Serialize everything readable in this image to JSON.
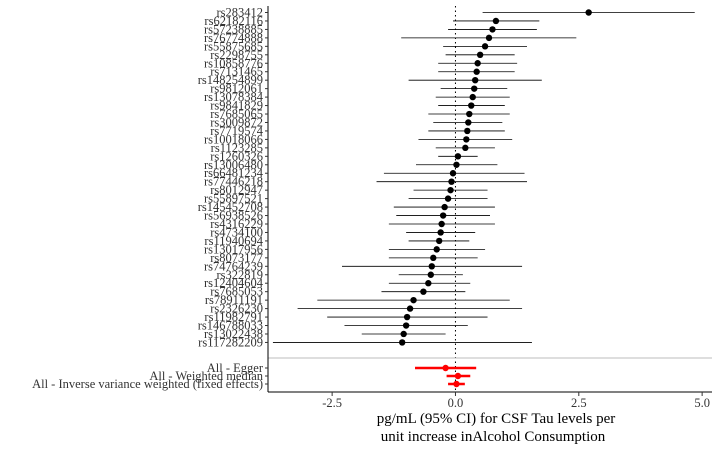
{
  "chart_data": {
    "type": "forest",
    "xlabel": [
      "pg/mL (95% CI) for CSF Tau levels per",
      "unit increase inAlcohol Consumption"
    ],
    "xticks": [
      -2.5,
      0.0,
      2.5,
      5.0
    ],
    "xtick_labels": [
      "-2.5",
      "0.0",
      "2.5",
      "5.0"
    ],
    "xlim": [
      -3.8,
      5.2
    ],
    "null_line": 0,
    "colors": {
      "snp": "#000000",
      "summary": "#ff0000",
      "separator": "#bebebe"
    },
    "snps": [
      {
        "label": "rs283412",
        "est": 2.7,
        "lo": 0.55,
        "hi": 4.85
      },
      {
        "label": "rs62182116",
        "est": 0.82,
        "lo": -0.05,
        "hi": 1.7
      },
      {
        "label": "rs57238885",
        "est": 0.75,
        "lo": -0.15,
        "hi": 1.65
      },
      {
        "label": "rs76774888",
        "est": 0.68,
        "lo": -1.1,
        "hi": 2.45
      },
      {
        "label": "rs55875685",
        "est": 0.6,
        "lo": -0.25,
        "hi": 1.45
      },
      {
        "label": "rs2298755",
        "est": 0.5,
        "lo": -0.2,
        "hi": 1.2
      },
      {
        "label": "rs10858776",
        "est": 0.45,
        "lo": -0.35,
        "hi": 1.25
      },
      {
        "label": "rs7131465",
        "est": 0.43,
        "lo": -0.35,
        "hi": 1.2
      },
      {
        "label": "rs148254899",
        "est": 0.4,
        "lo": -0.95,
        "hi": 1.75
      },
      {
        "label": "rs9812061",
        "est": 0.38,
        "lo": -0.3,
        "hi": 1.05
      },
      {
        "label": "rs13078384",
        "est": 0.35,
        "lo": -0.4,
        "hi": 1.1
      },
      {
        "label": "rs9841829",
        "est": 0.32,
        "lo": -0.35,
        "hi": 1.0
      },
      {
        "label": "rs7685065",
        "est": 0.28,
        "lo": -0.55,
        "hi": 1.1
      },
      {
        "label": "rs3009872",
        "est": 0.26,
        "lo": -0.45,
        "hi": 0.95
      },
      {
        "label": "rs7719574",
        "est": 0.24,
        "lo": -0.55,
        "hi": 1.0
      },
      {
        "label": "rs10018066",
        "est": 0.22,
        "lo": -0.75,
        "hi": 1.15
      },
      {
        "label": "rs1123285",
        "est": 0.2,
        "lo": -0.4,
        "hi": 0.8
      },
      {
        "label": "rs1260326",
        "est": 0.05,
        "lo": -0.35,
        "hi": 0.45
      },
      {
        "label": "rs13006480",
        "est": 0.02,
        "lo": -0.8,
        "hi": 0.85
      },
      {
        "label": "rs66481234",
        "est": -0.05,
        "lo": -1.45,
        "hi": 1.4
      },
      {
        "label": "rs77446218",
        "est": -0.08,
        "lo": -1.6,
        "hi": 1.45
      },
      {
        "label": "rs8012947",
        "est": -0.1,
        "lo": -0.85,
        "hi": 0.65
      },
      {
        "label": "rs55897521",
        "est": -0.15,
        "lo": -0.95,
        "hi": 0.65
      },
      {
        "label": "rs145452708",
        "est": -0.22,
        "lo": -1.25,
        "hi": 0.8
      },
      {
        "label": "rs56938526",
        "est": -0.25,
        "lo": -1.2,
        "hi": 0.7
      },
      {
        "label": "rs4316229",
        "est": -0.28,
        "lo": -1.35,
        "hi": 0.8
      },
      {
        "label": "rs4734100",
        "est": -0.3,
        "lo": -1.0,
        "hi": 0.4
      },
      {
        "label": "rs11940694",
        "est": -0.33,
        "lo": -0.95,
        "hi": 0.28
      },
      {
        "label": "rs13017956",
        "est": -0.38,
        "lo": -1.35,
        "hi": 0.6
      },
      {
        "label": "rs8073177",
        "est": -0.45,
        "lo": -1.35,
        "hi": 0.45
      },
      {
        "label": "rs74764239",
        "est": -0.48,
        "lo": -2.3,
        "hi": 1.35
      },
      {
        "label": "rs322819",
        "est": -0.5,
        "lo": -1.15,
        "hi": 0.15
      },
      {
        "label": "rs12404604",
        "est": -0.55,
        "lo": -1.35,
        "hi": 0.3
      },
      {
        "label": "rs7685053",
        "est": -0.65,
        "lo": -1.5,
        "hi": 0.2
      },
      {
        "label": "rs78911191",
        "est": -0.85,
        "lo": -2.8,
        "hi": 1.1
      },
      {
        "label": "rs2326230",
        "est": -0.92,
        "lo": -3.2,
        "hi": 1.35
      },
      {
        "label": "rs11982791",
        "est": -0.98,
        "lo": -2.6,
        "hi": 0.65
      },
      {
        "label": "rs146788033",
        "est": -1.0,
        "lo": -2.25,
        "hi": 0.25
      },
      {
        "label": "rs13022438",
        "est": -1.05,
        "lo": -1.9,
        "hi": -0.2
      },
      {
        "label": "rs117282209",
        "est": -1.08,
        "lo": -3.7,
        "hi": 1.55
      }
    ],
    "summaries": [
      {
        "label": "All - Egger",
        "est": -0.2,
        "lo": -0.82,
        "hi": 0.42
      },
      {
        "label": "All - Weighted median",
        "est": 0.05,
        "lo": -0.18,
        "hi": 0.3
      },
      {
        "label": "All - Inverse variance weighted (fixed effects)",
        "est": 0.02,
        "lo": -0.15,
        "hi": 0.19
      }
    ]
  }
}
